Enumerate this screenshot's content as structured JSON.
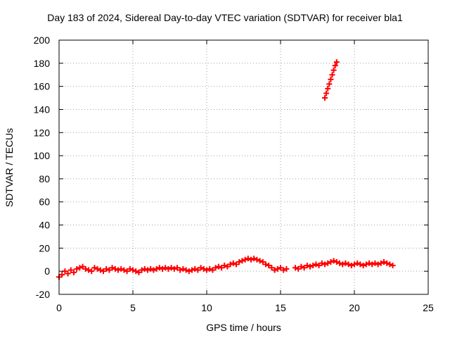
{
  "chart_data": {
    "type": "scatter",
    "title": "Day 183 of 2024, Sidereal Day-to-day VTEC variation (SDTVAR) for receiver bla1",
    "xlabel": "GPS time / hours",
    "ylabel": "SDTVAR / TECUs",
    "xlim": [
      0,
      25
    ],
    "ylim": [
      -20,
      200
    ],
    "xticks": [
      0,
      5,
      10,
      15,
      20,
      25
    ],
    "yticks": [
      -20,
      0,
      20,
      40,
      60,
      80,
      100,
      120,
      140,
      160,
      180,
      200
    ],
    "grid": true,
    "marker": "plus",
    "color": "#ff0000",
    "series": [
      {
        "name": "SDTVAR",
        "points": [
          [
            0.0,
            -5
          ],
          [
            0.2,
            -3
          ],
          [
            0.4,
            0
          ],
          [
            0.6,
            -2
          ],
          [
            0.8,
            1
          ],
          [
            1.0,
            -1
          ],
          [
            1.2,
            2
          ],
          [
            1.4,
            3
          ],
          [
            1.6,
            4
          ],
          [
            1.8,
            2
          ],
          [
            2.0,
            1
          ],
          [
            2.2,
            0
          ],
          [
            2.4,
            3
          ],
          [
            2.6,
            2
          ],
          [
            2.8,
            1
          ],
          [
            3.0,
            0
          ],
          [
            3.2,
            2
          ],
          [
            3.4,
            1
          ],
          [
            3.6,
            3
          ],
          [
            3.8,
            2
          ],
          [
            4.0,
            1
          ],
          [
            4.2,
            2
          ],
          [
            4.4,
            1
          ],
          [
            4.6,
            0
          ],
          [
            4.8,
            2
          ],
          [
            5.0,
            1
          ],
          [
            5.2,
            0
          ],
          [
            5.4,
            -1
          ],
          [
            5.6,
            1
          ],
          [
            5.8,
            2
          ],
          [
            6.0,
            1
          ],
          [
            6.2,
            2
          ],
          [
            6.4,
            1
          ],
          [
            6.6,
            2
          ],
          [
            6.8,
            3
          ],
          [
            7.0,
            2
          ],
          [
            7.2,
            3
          ],
          [
            7.4,
            2
          ],
          [
            7.6,
            3
          ],
          [
            7.8,
            2
          ],
          [
            8.0,
            3
          ],
          [
            8.2,
            1
          ],
          [
            8.4,
            2
          ],
          [
            8.6,
            1
          ],
          [
            8.8,
            0
          ],
          [
            9.0,
            1
          ],
          [
            9.2,
            2
          ],
          [
            9.4,
            1
          ],
          [
            9.6,
            3
          ],
          [
            9.8,
            2
          ],
          [
            10.0,
            1
          ],
          [
            10.2,
            2
          ],
          [
            10.4,
            1
          ],
          [
            10.6,
            3
          ],
          [
            10.8,
            4
          ],
          [
            11.0,
            3
          ],
          [
            11.2,
            5
          ],
          [
            11.4,
            4
          ],
          [
            11.6,
            6
          ],
          [
            11.8,
            7
          ],
          [
            12.0,
            6
          ],
          [
            12.2,
            8
          ],
          [
            12.4,
            9
          ],
          [
            12.6,
            10
          ],
          [
            12.8,
            11
          ],
          [
            13.0,
            10
          ],
          [
            13.2,
            11
          ],
          [
            13.4,
            10
          ],
          [
            13.6,
            9
          ],
          [
            13.8,
            8
          ],
          [
            14.0,
            6
          ],
          [
            14.2,
            5
          ],
          [
            14.4,
            3
          ],
          [
            14.6,
            1
          ],
          [
            14.8,
            2
          ],
          [
            15.0,
            3
          ],
          [
            15.2,
            1
          ],
          [
            15.4,
            2
          ],
          [
            16.0,
            3
          ],
          [
            16.2,
            2
          ],
          [
            16.4,
            4
          ],
          [
            16.6,
            3
          ],
          [
            16.8,
            5
          ],
          [
            17.0,
            4
          ],
          [
            17.2,
            5
          ],
          [
            17.4,
            6
          ],
          [
            17.6,
            5
          ],
          [
            17.8,
            7
          ],
          [
            18.0,
            6
          ],
          [
            18.2,
            7
          ],
          [
            18.4,
            8
          ],
          [
            18.6,
            9
          ],
          [
            18.8,
            8
          ],
          [
            19.0,
            7
          ],
          [
            19.2,
            6
          ],
          [
            19.4,
            7
          ],
          [
            19.6,
            6
          ],
          [
            19.8,
            5
          ],
          [
            20.0,
            6
          ],
          [
            20.2,
            7
          ],
          [
            20.4,
            6
          ],
          [
            20.6,
            5
          ],
          [
            20.8,
            6
          ],
          [
            21.0,
            7
          ],
          [
            21.2,
            6
          ],
          [
            21.4,
            7
          ],
          [
            21.6,
            6
          ],
          [
            21.8,
            7
          ],
          [
            22.0,
            8
          ],
          [
            22.2,
            7
          ],
          [
            22.4,
            6
          ],
          [
            22.6,
            5
          ],
          [
            18.0,
            150
          ],
          [
            18.1,
            154
          ],
          [
            18.2,
            158
          ],
          [
            18.3,
            162
          ],
          [
            18.4,
            166
          ],
          [
            18.5,
            170
          ],
          [
            18.6,
            174
          ],
          [
            18.7,
            178
          ],
          [
            18.8,
            181
          ]
        ]
      }
    ]
  }
}
